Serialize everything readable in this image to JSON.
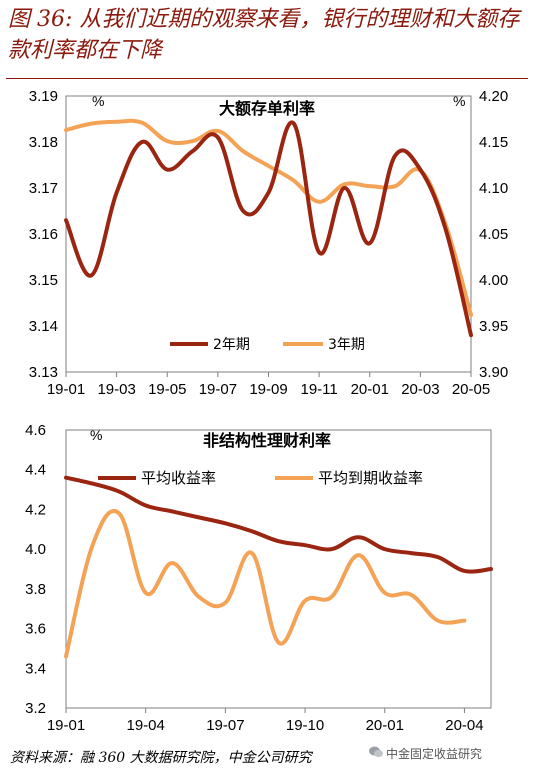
{
  "figure_title": "图 36: 从我们近期的观察来看，银行的理财和大额存款利率都在下降",
  "source_note": "资料来源：融 360 大数据研究院，中金公司研究",
  "watermark": "中金固定收益研究",
  "icon": "wechat-icon",
  "colors": {
    "dark": "#9a2511",
    "light": "#f4a356",
    "title": "#8b1a0e",
    "axis": "#7f7f7f"
  },
  "chart_data": [
    {
      "type": "line",
      "title": "大额存单利率",
      "unit_left": "%",
      "unit_right": "%",
      "x_tick_labels": [
        "19-01",
        "19-03",
        "19-05",
        "19-07",
        "19-09",
        "19-11",
        "20-01",
        "20-03",
        "20-05"
      ],
      "x_range": [
        0,
        16
      ],
      "left_axis": {
        "range": [
          3.13,
          3.19
        ],
        "ticks": [
          "3.13",
          "3.14",
          "3.15",
          "3.16",
          "3.17",
          "3.18",
          "3.19"
        ]
      },
      "right_axis": {
        "range": [
          3.9,
          4.2
        ],
        "ticks": [
          "3.90",
          "3.95",
          "4.00",
          "4.05",
          "4.10",
          "4.15",
          "4.20"
        ]
      },
      "legend_position": "bottom-center",
      "series": [
        {
          "name": "2年期",
          "axis": "left",
          "color": "#9a2511",
          "x": [
            0,
            1,
            2,
            3,
            4,
            5,
            6,
            7,
            8,
            9,
            10,
            11,
            12,
            13,
            14,
            15,
            16
          ],
          "values": [
            3.163,
            3.151,
            3.169,
            3.18,
            3.174,
            3.178,
            3.181,
            3.165,
            3.169,
            3.184,
            3.156,
            3.17,
            3.158,
            3.177,
            3.174,
            3.161,
            3.138
          ]
        },
        {
          "name": "3年期",
          "axis": "right",
          "color": "#f4a356",
          "x": [
            0,
            1,
            2,
            3,
            4,
            5,
            6,
            7,
            8,
            9,
            10,
            11,
            12,
            13,
            14,
            15,
            16
          ],
          "values": [
            4.163,
            4.17,
            4.172,
            4.171,
            4.151,
            4.151,
            4.162,
            4.14,
            4.124,
            4.108,
            4.085,
            4.104,
            4.102,
            4.102,
            4.119,
            4.06,
            3.962
          ]
        }
      ]
    },
    {
      "type": "line",
      "title": "非结构性理财利率",
      "unit_left": "%",
      "x_tick_labels": [
        "19-01",
        "19-04",
        "19-07",
        "19-10",
        "20-01",
        "20-04"
      ],
      "x_range": [
        0,
        16
      ],
      "left_axis": {
        "range": [
          3.2,
          4.6
        ],
        "ticks": [
          "3.2",
          "3.4",
          "3.6",
          "3.8",
          "4.0",
          "4.2",
          "4.4",
          "4.6"
        ]
      },
      "legend_position": "top",
      "series": [
        {
          "name": "平均收益率",
          "color": "#9a2511",
          "x": [
            0,
            1,
            2,
            3,
            4,
            5,
            6,
            7,
            8,
            9,
            10,
            11,
            12,
            13,
            14,
            15,
            16
          ],
          "values": [
            4.36,
            4.33,
            4.29,
            4.22,
            4.19,
            4.16,
            4.13,
            4.09,
            4.04,
            4.02,
            4.0,
            4.06,
            4.0,
            3.98,
            3.96,
            3.89,
            3.9
          ]
        },
        {
          "name": "平均到期收益率",
          "color": "#f4a356",
          "x": [
            0,
            1,
            2,
            3,
            4,
            5,
            6,
            7,
            8,
            9,
            10,
            11,
            12,
            13,
            14,
            15
          ],
          "values": [
            3.46,
            4.02,
            4.18,
            3.78,
            3.93,
            3.76,
            3.73,
            3.98,
            3.53,
            3.74,
            3.76,
            3.97,
            3.78,
            3.77,
            3.64,
            3.64
          ]
        }
      ]
    }
  ]
}
